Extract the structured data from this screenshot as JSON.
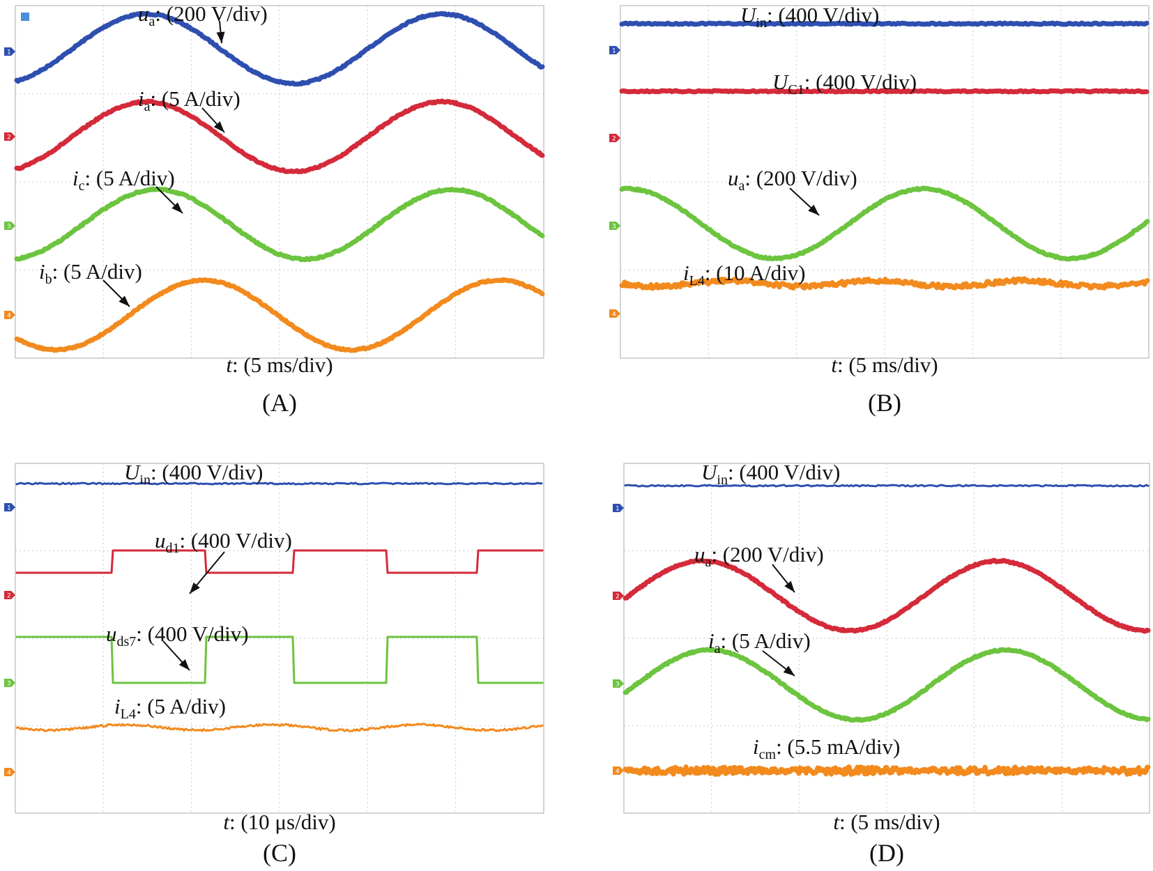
{
  "chart_data": [
    {
      "id": "A",
      "type": "line",
      "panel_label": "(A)",
      "xlabel": {
        "sym": "t",
        "unit": ": (5 ms/div)"
      },
      "channels": [
        {
          "ch": "1",
          "color": "#2e4fb0",
          "label": {
            "sym": "u",
            "sub": "a",
            "unit": ": (200 V/div)"
          },
          "wave": "sine",
          "amp_div": 0.85,
          "offset_div": 0.7
        },
        {
          "ch": "2",
          "color": "#d42a3a",
          "label": {
            "sym": "i",
            "sub": "a",
            "unit": ": (5 A/div)"
          },
          "wave": "sine",
          "amp_div": 0.85,
          "offset_div": 0.7
        },
        {
          "ch": "3",
          "color": "#6cc43f",
          "label": {
            "sym": "i",
            "sub": "c",
            "unit": ": (5 A/div)"
          },
          "wave": "sine",
          "amp_div": 0.85,
          "offset_div": 0.0
        },
        {
          "ch": "4",
          "color": "#f28a1e",
          "label": {
            "sym": "i",
            "sub": "b",
            "unit": ": (5 A/div)"
          },
          "wave": "sine",
          "amp_div": 0.85,
          "offset_div": -0.35
        }
      ]
    },
    {
      "id": "B",
      "type": "line",
      "panel_label": "(B)",
      "xlabel": {
        "sym": "t",
        "unit": ": (5 ms/div)"
      },
      "channels": [
        {
          "ch": "1",
          "color": "#2e4fb0",
          "label": {
            "sym": "U",
            "sub": "in",
            "unit": ": (400 V/div)"
          },
          "wave": "dc"
        },
        {
          "ch": "2",
          "color": "#d42a3a",
          "label": {
            "sym": "U",
            "sub": "C1",
            "unit": ": (400 V/div)"
          },
          "wave": "dc"
        },
        {
          "ch": "3",
          "color": "#6cc43f",
          "label": {
            "sym": "u",
            "sub": "a",
            "unit": ": (200 V/div)"
          },
          "wave": "sine",
          "amp_div": 0.85
        },
        {
          "ch": "4",
          "color": "#f28a1e",
          "label": {
            "sym": "i",
            "sub": "L4",
            "unit": ": (10 A/div)"
          },
          "wave": "dc-ripple"
        }
      ]
    },
    {
      "id": "C",
      "type": "line",
      "panel_label": "(C)",
      "xlabel": {
        "sym": "t",
        "unit": ": (10 μs/div)"
      },
      "channels": [
        {
          "ch": "1",
          "color": "#2e4fb0",
          "label": {
            "sym": "U",
            "sub": "in",
            "unit": ": (400 V/div)"
          },
          "wave": "dc"
        },
        {
          "ch": "2",
          "color": "#d42a3a",
          "label": {
            "sym": "u",
            "sub": "d1",
            "unit": ": (400 V/div)"
          },
          "wave": "square"
        },
        {
          "ch": "3",
          "color": "#6cc43f",
          "label": {
            "sym": "u",
            "sub": "ds7",
            "unit": ": (400 V/div)"
          },
          "wave": "square-inverted"
        },
        {
          "ch": "4",
          "color": "#f28a1e",
          "label": {
            "sym": "i",
            "sub": "L4",
            "unit": ": (5 A/div)"
          },
          "wave": "dc-ripple"
        }
      ]
    },
    {
      "id": "D",
      "type": "line",
      "panel_label": "(D)",
      "xlabel": {
        "sym": "t",
        "unit": ": (5 ms/div)"
      },
      "channels": [
        {
          "ch": "1",
          "color": "#2e4fb0",
          "label": {
            "sym": "U",
            "sub": "in",
            "unit": ": (400 V/div)"
          },
          "wave": "dc"
        },
        {
          "ch": "2",
          "color": "#d42a3a",
          "label": {
            "sym": "u",
            "sub": "a",
            "unit": ": (200 V/div)"
          },
          "wave": "sine",
          "amp_div": 0.8
        },
        {
          "ch": "3",
          "color": "#6cc43f",
          "label": {
            "sym": "i",
            "sub": "a",
            "unit": ": (5 A/div)"
          },
          "wave": "sine",
          "amp_div": 0.8
        },
        {
          "ch": "4",
          "color": "#f28a1e",
          "label": {
            "sym": "i",
            "sub": "cm",
            "unit": ": (5.5 mA/div)"
          },
          "wave": "noise"
        }
      ]
    }
  ]
}
